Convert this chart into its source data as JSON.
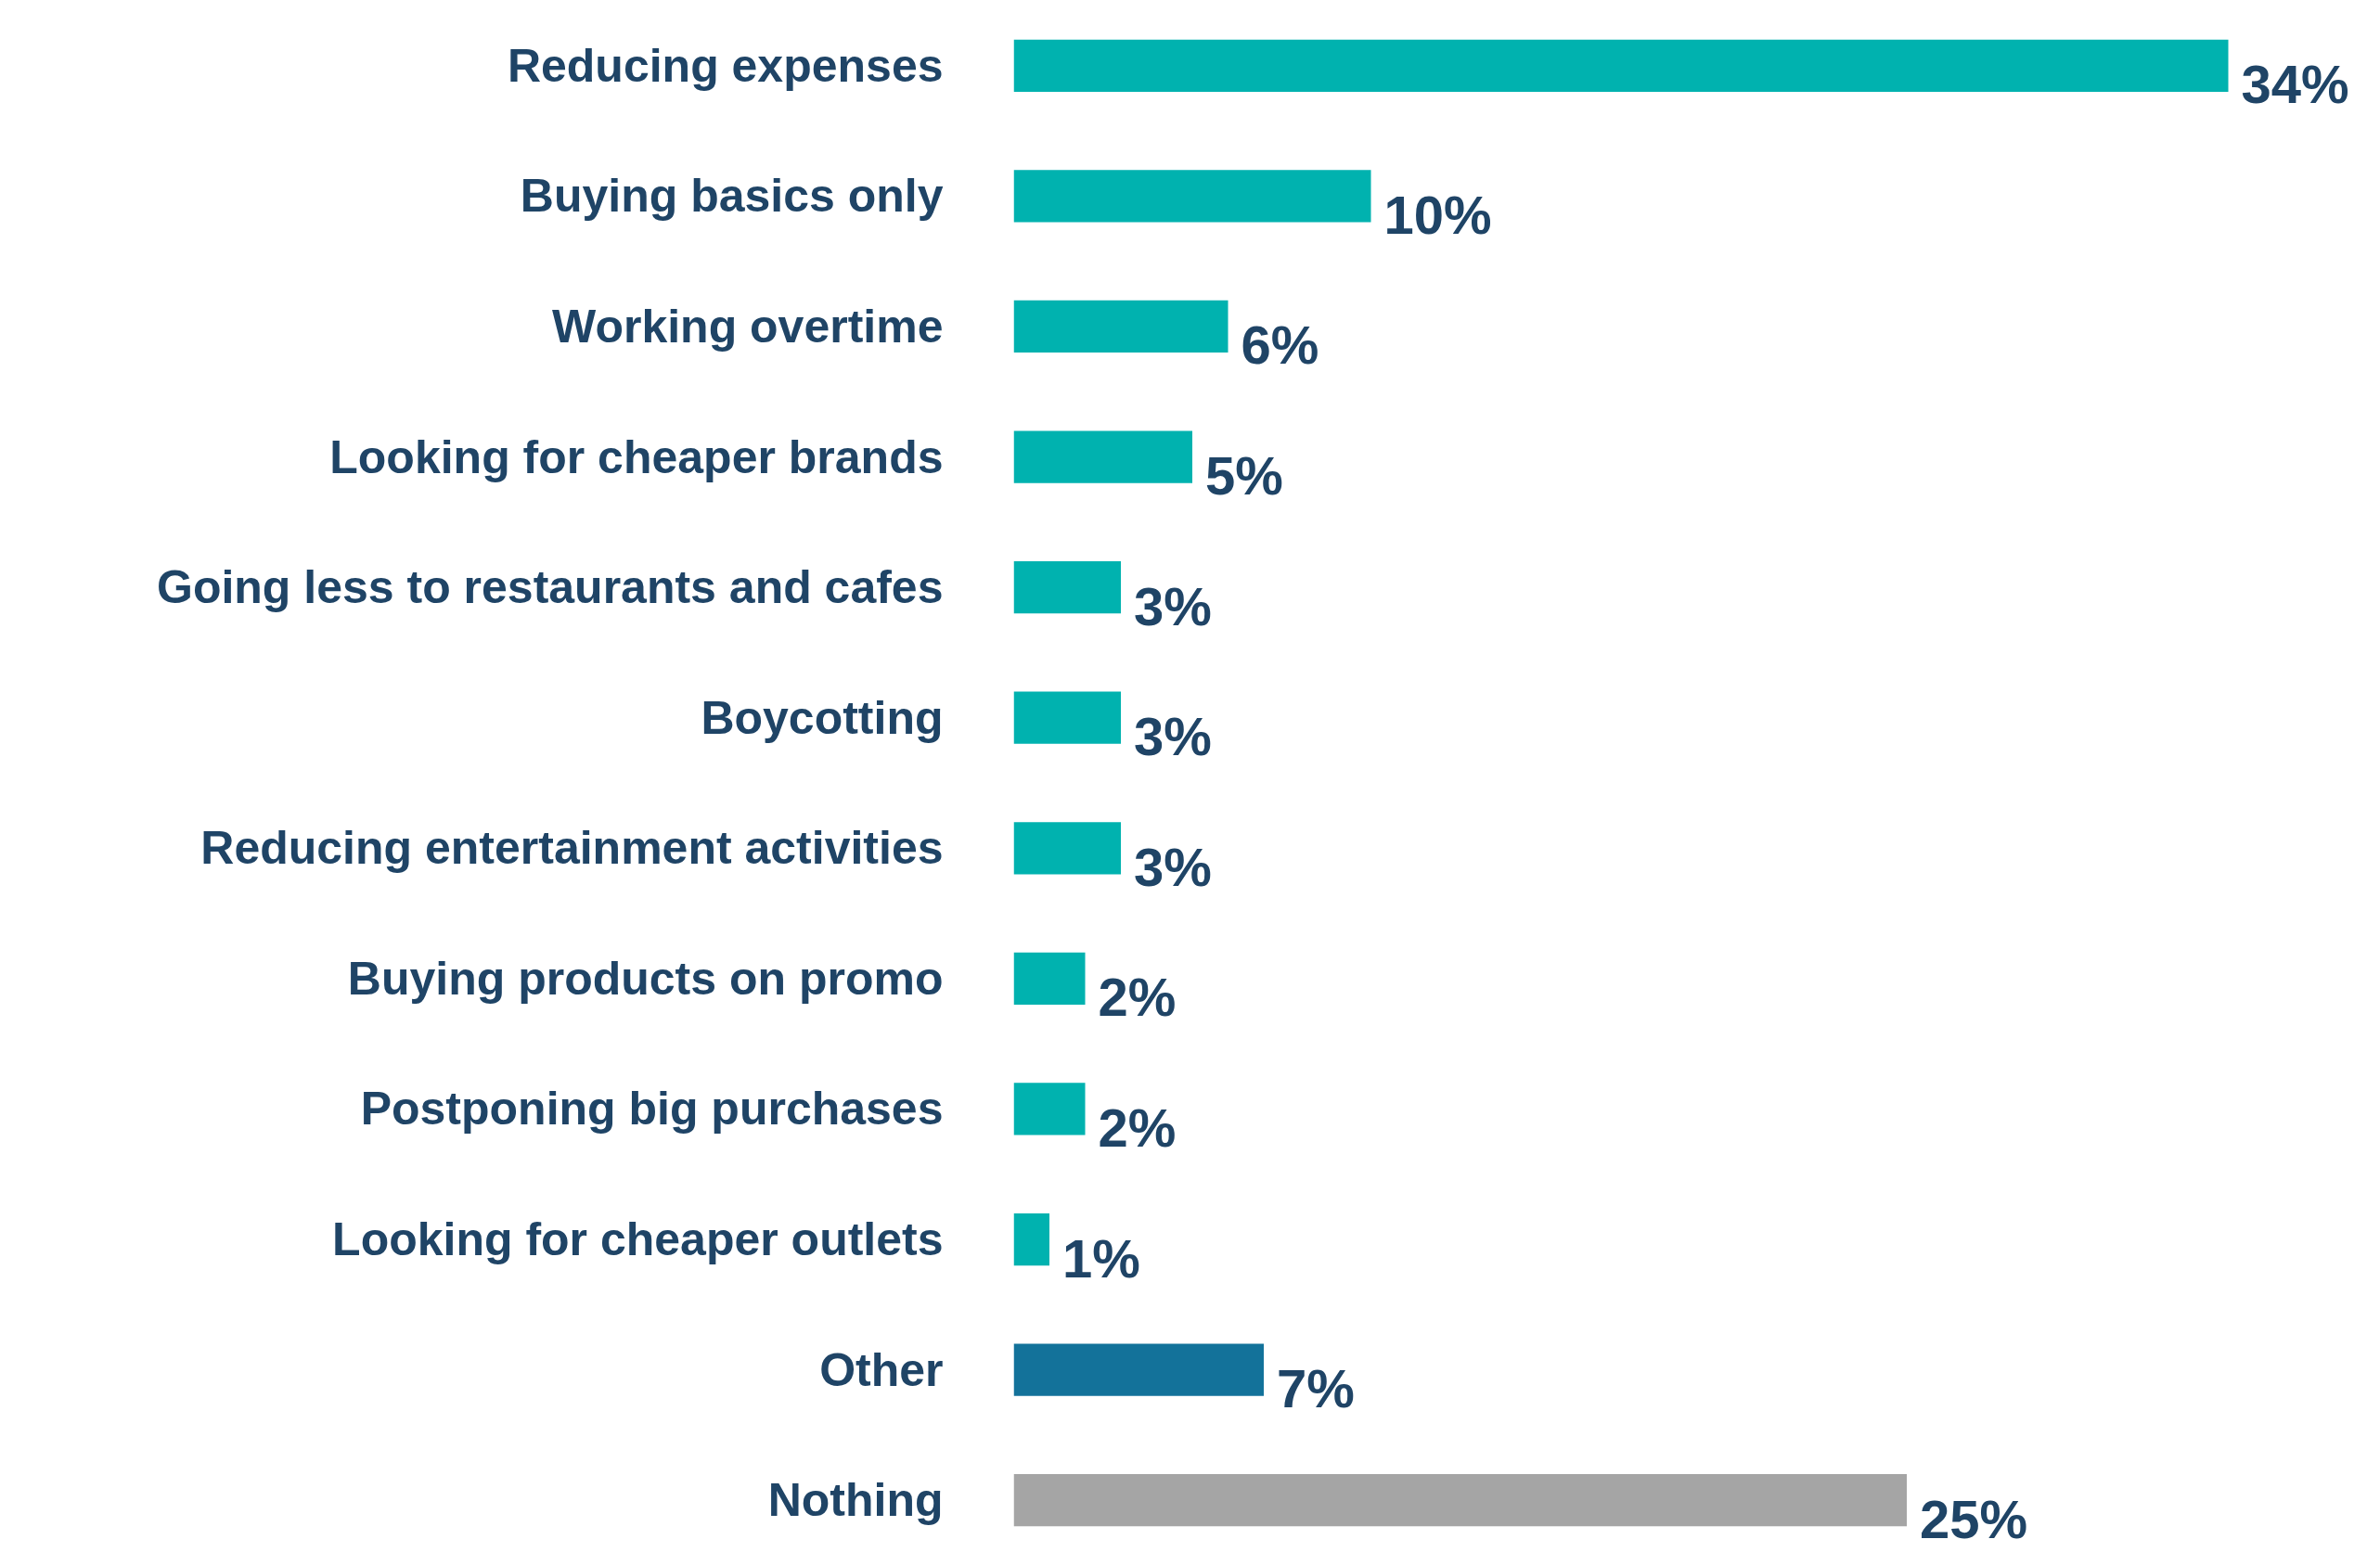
{
  "chart_data": {
    "type": "bar",
    "orientation": "horizontal",
    "categories": [
      "Reducing expenses",
      "Buying basics only",
      "Working overtime",
      "Looking for cheaper brands",
      "Going less to restaurants and cafes",
      "Boycotting",
      "Reducing entertainment activities",
      "Buying products on promo",
      "Postponing big purchases",
      "Looking for cheaper outlets",
      "Other",
      "Nothing"
    ],
    "values": [
      34,
      10,
      6,
      5,
      3,
      3,
      3,
      2,
      2,
      1,
      7,
      25
    ],
    "colors": [
      "#00b2af",
      "#00b2af",
      "#00b2af",
      "#00b2af",
      "#00b2af",
      "#00b2af",
      "#00b2af",
      "#00b2af",
      "#00b2af",
      "#00b2af",
      "#13729a",
      "#a5a5a5"
    ],
    "value_labels": [
      "34%",
      "10%",
      "6%",
      "5%",
      "3%",
      "3%",
      "3%",
      "2%",
      "2%",
      "1%",
      "7%",
      "25%"
    ],
    "grid": false
  }
}
